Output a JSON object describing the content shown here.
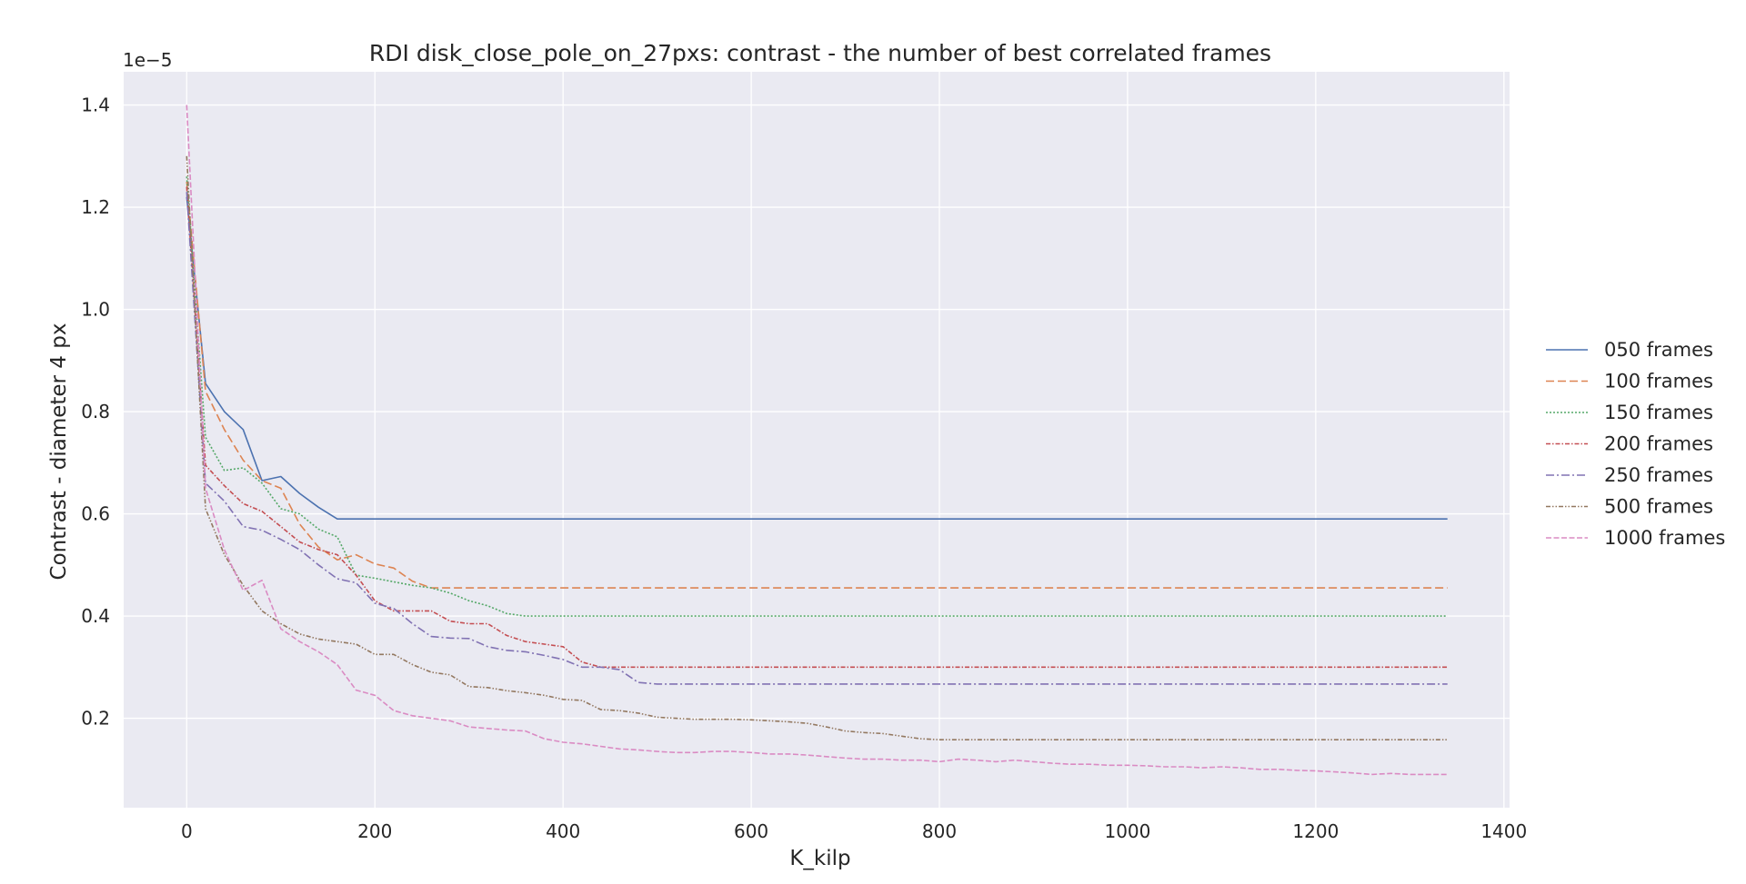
{
  "chart_data": {
    "type": "line",
    "title": "RDI disk_close_pole_on_27pxs: contrast - the number of best correlated frames",
    "xlabel": "K_kilp",
    "ylabel": "Contrast - diameter 4 px",
    "y_offset_label": "1e−5",
    "y_scale_factor": 1e-05,
    "xlim": [
      -67,
      1406
    ],
    "ylim": [
      0.025,
      1.465
    ],
    "x_ticks": [
      0,
      200,
      400,
      600,
      800,
      1000,
      1200,
      1400
    ],
    "y_ticks": [
      0.2,
      0.4,
      0.6,
      0.8,
      1.0,
      1.2,
      1.4
    ],
    "grid": true,
    "legend_position": "right",
    "x": [
      0,
      20,
      40,
      60,
      80,
      100,
      120,
      140,
      160,
      180,
      200,
      220,
      240,
      260,
      280,
      300,
      320,
      340,
      360,
      380,
      400,
      420,
      440,
      460,
      480,
      500,
      520,
      540,
      560,
      580,
      600,
      620,
      640,
      660,
      680,
      700,
      720,
      740,
      760,
      780,
      800,
      820,
      840,
      860,
      880,
      900,
      920,
      940,
      960,
      980,
      1000,
      1020,
      1040,
      1060,
      1080,
      1100,
      1120,
      1140,
      1160,
      1180,
      1200,
      1220,
      1240,
      1260,
      1280,
      1300,
      1320,
      1340
    ],
    "series": [
      {
        "name": "050 frames",
        "color": "#4c72b0",
        "dash": "",
        "values": [
          1.22,
          0.855,
          0.8,
          0.765,
          0.665,
          0.673,
          0.64,
          0.613,
          0.59,
          0.59,
          0.59,
          0.59,
          0.59,
          0.59,
          0.59,
          0.59,
          0.59,
          0.59,
          0.59,
          0.59,
          0.59,
          0.59,
          0.59,
          0.59,
          0.59,
          0.59,
          0.59,
          0.59,
          0.59,
          0.59,
          0.59,
          0.59,
          0.59,
          0.59,
          0.59,
          0.59,
          0.59,
          0.59,
          0.59,
          0.59,
          0.59,
          0.59,
          0.59,
          0.59,
          0.59,
          0.59,
          0.59,
          0.59,
          0.59,
          0.59,
          0.59,
          0.59,
          0.59,
          0.59,
          0.59,
          0.59,
          0.59,
          0.59,
          0.59,
          0.59,
          0.59,
          0.59,
          0.59,
          0.59,
          0.59,
          0.59,
          0.59,
          0.59
        ]
      },
      {
        "name": "100 frames",
        "color": "#dd8452",
        "dash": "9,4",
        "values": [
          1.25,
          0.84,
          0.765,
          0.705,
          0.665,
          0.65,
          0.58,
          0.535,
          0.51,
          0.52,
          0.502,
          0.494,
          0.468,
          0.455,
          0.455,
          0.455,
          0.455,
          0.455,
          0.455,
          0.455,
          0.455,
          0.455,
          0.455,
          0.455,
          0.455,
          0.455,
          0.455,
          0.455,
          0.455,
          0.455,
          0.455,
          0.455,
          0.455,
          0.455,
          0.455,
          0.455,
          0.455,
          0.455,
          0.455,
          0.455,
          0.455,
          0.455,
          0.455,
          0.455,
          0.455,
          0.455,
          0.455,
          0.455,
          0.455,
          0.455,
          0.455,
          0.455,
          0.455,
          0.455,
          0.455,
          0.455,
          0.455,
          0.455,
          0.455,
          0.455,
          0.455,
          0.455,
          0.455,
          0.455,
          0.455,
          0.455,
          0.455,
          0.455
        ]
      },
      {
        "name": "150 frames",
        "color": "#55a868",
        "dash": "2,2",
        "values": [
          1.26,
          0.75,
          0.685,
          0.69,
          0.66,
          0.61,
          0.6,
          0.57,
          0.555,
          0.48,
          0.474,
          0.467,
          0.46,
          0.455,
          0.445,
          0.43,
          0.42,
          0.405,
          0.4,
          0.4,
          0.4,
          0.4,
          0.4,
          0.4,
          0.4,
          0.4,
          0.4,
          0.4,
          0.4,
          0.4,
          0.4,
          0.4,
          0.4,
          0.4,
          0.4,
          0.4,
          0.4,
          0.4,
          0.4,
          0.4,
          0.4,
          0.4,
          0.4,
          0.4,
          0.4,
          0.4,
          0.4,
          0.4,
          0.4,
          0.4,
          0.4,
          0.4,
          0.4,
          0.4,
          0.4,
          0.4,
          0.4,
          0.4,
          0.4,
          0.4,
          0.4,
          0.4,
          0.4,
          0.4,
          0.4,
          0.4,
          0.4,
          0.4
        ]
      },
      {
        "name": "200 frames",
        "color": "#c44e52",
        "dash": "5,2,1.5,2",
        "values": [
          1.24,
          0.695,
          0.655,
          0.62,
          0.605,
          0.575,
          0.545,
          0.53,
          0.52,
          0.48,
          0.43,
          0.41,
          0.41,
          0.41,
          0.39,
          0.385,
          0.385,
          0.362,
          0.35,
          0.345,
          0.34,
          0.31,
          0.3,
          0.3,
          0.3,
          0.3,
          0.3,
          0.3,
          0.3,
          0.3,
          0.3,
          0.3,
          0.3,
          0.3,
          0.3,
          0.3,
          0.3,
          0.3,
          0.3,
          0.3,
          0.3,
          0.3,
          0.3,
          0.3,
          0.3,
          0.3,
          0.3,
          0.3,
          0.3,
          0.3,
          0.3,
          0.3,
          0.3,
          0.3,
          0.3,
          0.3,
          0.3,
          0.3,
          0.3,
          0.3,
          0.3,
          0.3,
          0.3,
          0.3,
          0.3,
          0.3,
          0.3,
          0.3
        ]
      },
      {
        "name": "250 frames",
        "color": "#8172b3",
        "dash": "9,3,2,3",
        "values": [
          1.23,
          0.66,
          0.625,
          0.575,
          0.568,
          0.55,
          0.53,
          0.5,
          0.473,
          0.465,
          0.425,
          0.415,
          0.385,
          0.36,
          0.357,
          0.356,
          0.34,
          0.333,
          0.33,
          0.323,
          0.315,
          0.3,
          0.3,
          0.295,
          0.27,
          0.267,
          0.267,
          0.267,
          0.267,
          0.267,
          0.267,
          0.267,
          0.267,
          0.267,
          0.267,
          0.267,
          0.267,
          0.267,
          0.267,
          0.267,
          0.267,
          0.267,
          0.267,
          0.267,
          0.267,
          0.267,
          0.267,
          0.267,
          0.267,
          0.267,
          0.267,
          0.267,
          0.267,
          0.267,
          0.267,
          0.267,
          0.267,
          0.267,
          0.267,
          0.267,
          0.267,
          0.267,
          0.267,
          0.267,
          0.267,
          0.267,
          0.267,
          0.267
        ]
      },
      {
        "name": "500 frames",
        "color": "#937860",
        "dash": "5,2,1.5,2,1.5,2",
        "values": [
          1.3,
          0.61,
          0.52,
          0.46,
          0.41,
          0.385,
          0.365,
          0.355,
          0.35,
          0.345,
          0.325,
          0.325,
          0.305,
          0.29,
          0.285,
          0.262,
          0.26,
          0.254,
          0.25,
          0.245,
          0.237,
          0.235,
          0.217,
          0.215,
          0.21,
          0.202,
          0.2,
          0.198,
          0.198,
          0.198,
          0.197,
          0.195,
          0.193,
          0.19,
          0.183,
          0.175,
          0.172,
          0.17,
          0.165,
          0.16,
          0.158,
          0.158,
          0.158,
          0.158,
          0.158,
          0.158,
          0.158,
          0.158,
          0.158,
          0.158,
          0.158,
          0.158,
          0.158,
          0.158,
          0.158,
          0.158,
          0.158,
          0.158,
          0.158,
          0.158,
          0.158,
          0.158,
          0.158,
          0.158,
          0.158,
          0.158,
          0.158,
          0.158
        ]
      },
      {
        "name": "1000 frames",
        "color": "#da8bc3",
        "dash": "6,2.5",
        "values": [
          1.4,
          0.65,
          0.53,
          0.45,
          0.47,
          0.375,
          0.35,
          0.33,
          0.305,
          0.255,
          0.245,
          0.215,
          0.205,
          0.2,
          0.195,
          0.183,
          0.18,
          0.177,
          0.175,
          0.16,
          0.153,
          0.15,
          0.145,
          0.14,
          0.138,
          0.135,
          0.133,
          0.133,
          0.135,
          0.135,
          0.133,
          0.13,
          0.13,
          0.128,
          0.125,
          0.122,
          0.12,
          0.12,
          0.118,
          0.118,
          0.115,
          0.12,
          0.118,
          0.115,
          0.118,
          0.115,
          0.112,
          0.11,
          0.11,
          0.108,
          0.108,
          0.107,
          0.105,
          0.105,
          0.103,
          0.105,
          0.103,
          0.1,
          0.1,
          0.098,
          0.097,
          0.095,
          0.093,
          0.09,
          0.092,
          0.09,
          0.09,
          0.09
        ]
      }
    ]
  }
}
